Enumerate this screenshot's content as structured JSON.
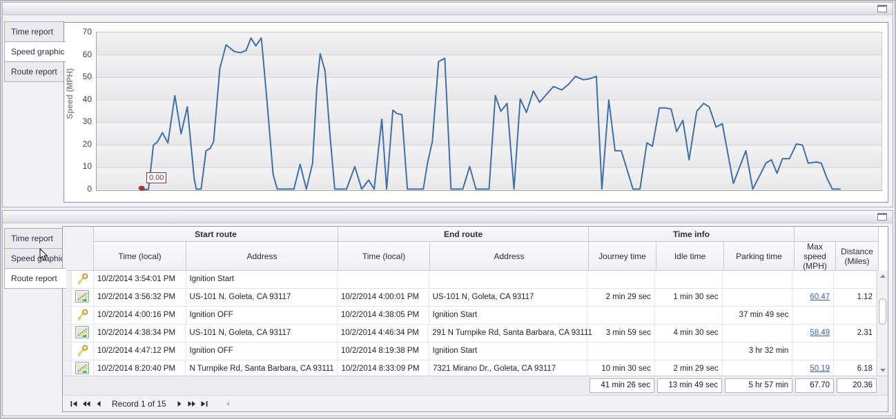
{
  "icons": {
    "maximize": "window-restore-box",
    "key": "gold-key",
    "route_map": "map-with-green-arrow",
    "cursor": "arrow-pointer"
  },
  "top_panel": {
    "tabs": [
      {
        "label": "Time report",
        "active": false
      },
      {
        "label": "Speed graphic",
        "active": true
      },
      {
        "label": "Route report",
        "active": false
      }
    ]
  },
  "chart_data": {
    "type": "line",
    "title": "",
    "xlabel": "",
    "ylabel": "Speed (MPH)",
    "ylim": [
      0,
      70
    ],
    "yticks": [
      0,
      10,
      20,
      30,
      40,
      50,
      60,
      70
    ],
    "grid": true,
    "x_axis_labels_visible": false,
    "line_color": "#3f6fa8",
    "annotation": {
      "text": "0.00",
      "color": "#7b2828",
      "marker_color": "#9b3a33"
    },
    "series": [
      {
        "name": "Speed (MPH)",
        "points": [
          [
            65,
            0
          ],
          [
            75,
            0.5
          ],
          [
            82,
            20
          ],
          [
            88,
            21.5
          ],
          [
            95,
            25.5
          ],
          [
            103,
            21
          ],
          [
            113,
            42
          ],
          [
            122,
            25
          ],
          [
            131,
            37
          ],
          [
            141,
            5
          ],
          [
            144,
            0.5
          ],
          [
            151,
            0.5
          ],
          [
            158,
            17.5
          ],
          [
            164,
            18.5
          ],
          [
            169,
            21.5
          ],
          [
            178,
            54
          ],
          [
            187,
            64.5
          ],
          [
            199,
            61.5
          ],
          [
            208,
            61
          ],
          [
            216,
            62
          ],
          [
            223,
            67.5
          ],
          [
            230,
            64
          ],
          [
            238,
            67.5
          ],
          [
            246,
            40
          ],
          [
            255,
            7
          ],
          [
            261,
            0.5
          ],
          [
            285,
            0.5
          ],
          [
            294,
            11.5
          ],
          [
            303,
            0.5
          ],
          [
            312,
            12
          ],
          [
            318,
            45
          ],
          [
            323,
            60.5
          ],
          [
            330,
            53
          ],
          [
            337,
            25
          ],
          [
            344,
            0.5
          ],
          [
            361,
            0.5
          ],
          [
            373,
            10.5
          ],
          [
            383,
            0.5
          ],
          [
            393,
            4.5
          ],
          [
            401,
            0.5
          ],
          [
            412,
            31.5
          ],
          [
            419,
            0.5
          ],
          [
            428,
            35.5
          ],
          [
            434,
            34
          ],
          [
            441,
            33.5
          ],
          [
            449,
            0.5
          ],
          [
            472,
            0.5
          ],
          [
            478,
            12
          ],
          [
            485,
            21.5
          ],
          [
            494,
            57
          ],
          [
            503,
            58.5
          ],
          [
            512,
            0.5
          ],
          [
            529,
            0.5
          ],
          [
            539,
            10.5
          ],
          [
            548,
            0.5
          ],
          [
            567,
            0.5
          ],
          [
            576,
            42
          ],
          [
            584,
            35
          ],
          [
            593,
            38.5
          ],
          [
            603,
            0.5
          ],
          [
            612,
            40.5
          ],
          [
            621,
            34.5
          ],
          [
            631,
            44
          ],
          [
            640,
            39
          ],
          [
            650,
            42.5
          ],
          [
            660,
            46
          ],
          [
            672,
            44.5
          ],
          [
            682,
            47
          ],
          [
            692,
            50.5
          ],
          [
            703,
            49
          ],
          [
            713,
            49.5
          ],
          [
            722,
            50.5
          ],
          [
            730,
            0.5
          ],
          [
            740,
            40
          ],
          [
            749,
            17.5
          ],
          [
            758,
            17.5
          ],
          [
            775,
            0.5
          ],
          [
            785,
            0.5
          ],
          [
            795,
            21
          ],
          [
            803,
            19.5
          ],
          [
            813,
            36.5
          ],
          [
            822,
            36.5
          ],
          [
            830,
            36
          ],
          [
            838,
            26
          ],
          [
            847,
            31
          ],
          [
            856,
            13.5
          ],
          [
            867,
            35
          ],
          [
            877,
            38.5
          ],
          [
            885,
            37
          ],
          [
            895,
            28
          ],
          [
            904,
            29.5
          ],
          [
            920,
            3
          ],
          [
            938,
            17.5
          ],
          [
            948,
            0.5
          ],
          [
            958,
            6.5
          ],
          [
            967,
            12
          ],
          [
            975,
            13.5
          ],
          [
            983,
            7.5
          ],
          [
            991,
            14
          ],
          [
            1001,
            14
          ],
          [
            1011,
            20.5
          ],
          [
            1020,
            20
          ],
          [
            1028,
            12
          ],
          [
            1040,
            12.5
          ],
          [
            1047,
            12
          ],
          [
            1055,
            5.5
          ],
          [
            1063,
            0.5
          ],
          [
            1075,
            0.5
          ]
        ]
      }
    ]
  },
  "bottom_panel": {
    "tabs": [
      {
        "label": "Time report",
        "active": false
      },
      {
        "label": "Speed graphic",
        "active": false
      },
      {
        "label": "Route report",
        "active": true
      }
    ],
    "grid": {
      "groups": [
        {
          "label": "Start route"
        },
        {
          "label": "End route"
        },
        {
          "label": "Time info"
        }
      ],
      "columns": [
        "Time (local)",
        "Address",
        "Time (local)",
        "Address",
        "Journey time",
        "Idle time",
        "Parking time",
        "Max speed (MPH)",
        "Distance (Miles)"
      ],
      "rows": [
        {
          "icon": "key",
          "max_speed_link": false,
          "cells": [
            "10/2/2014 3:54:01 PM",
            "Ignition Start",
            "",
            "",
            "",
            "",
            "",
            "",
            ""
          ]
        },
        {
          "icon": "route",
          "max_speed_link": true,
          "cells": [
            "10/2/2014 3:56:32 PM",
            "US-101 N, Goleta, CA 93117",
            "10/2/2014 4:00:01 PM",
            "US-101 N, Goleta, CA 93117",
            "2 min 29 sec",
            "1 min 30 sec",
            "",
            "60.47",
            "1.12"
          ]
        },
        {
          "icon": "key",
          "max_speed_link": false,
          "cells": [
            "10/2/2014 4:00:16 PM",
            "Ignition OFF",
            "10/2/2014 4:38:05 PM",
            "Ignition Start",
            "",
            "",
            "37 min 49 sec",
            "",
            ""
          ]
        },
        {
          "icon": "route",
          "max_speed_link": true,
          "cells": [
            "10/2/2014 4:38:34 PM",
            "US-101 N, Goleta, CA 93117",
            "10/2/2014 4:46:34 PM",
            "291 N Turnpike Rd, Santa Barbara, CA 93111",
            "3 min 59 sec",
            "4 min 30 sec",
            "",
            "58.49",
            "2.31"
          ]
        },
        {
          "icon": "key",
          "max_speed_link": false,
          "cells": [
            "10/2/2014 4:47:12 PM",
            "Ignition OFF",
            "10/2/2014 8:19:38 PM",
            "Ignition Start",
            "",
            "",
            "3 hr 32 min",
            "",
            ""
          ]
        },
        {
          "icon": "route",
          "max_speed_link": true,
          "cells": [
            "10/2/2014 8:20:40 PM",
            "N Turnpike Rd, Santa Barbara, CA 93111",
            "10/2/2014 8:33:09 PM",
            "7321 Mirano Dr., Goleta, CA 93117",
            "10 min 30 sec",
            "2 min 29 sec",
            "",
            "50.19",
            "6.18"
          ]
        }
      ],
      "summary": {
        "journey_time": "41 min 26 sec",
        "idle_time": "13 min 49 sec",
        "parking_time": "5 hr 57 min",
        "max_speed": "67.70",
        "distance": "20.36"
      },
      "navigator": {
        "text": "Record 1 of 15"
      }
    }
  }
}
